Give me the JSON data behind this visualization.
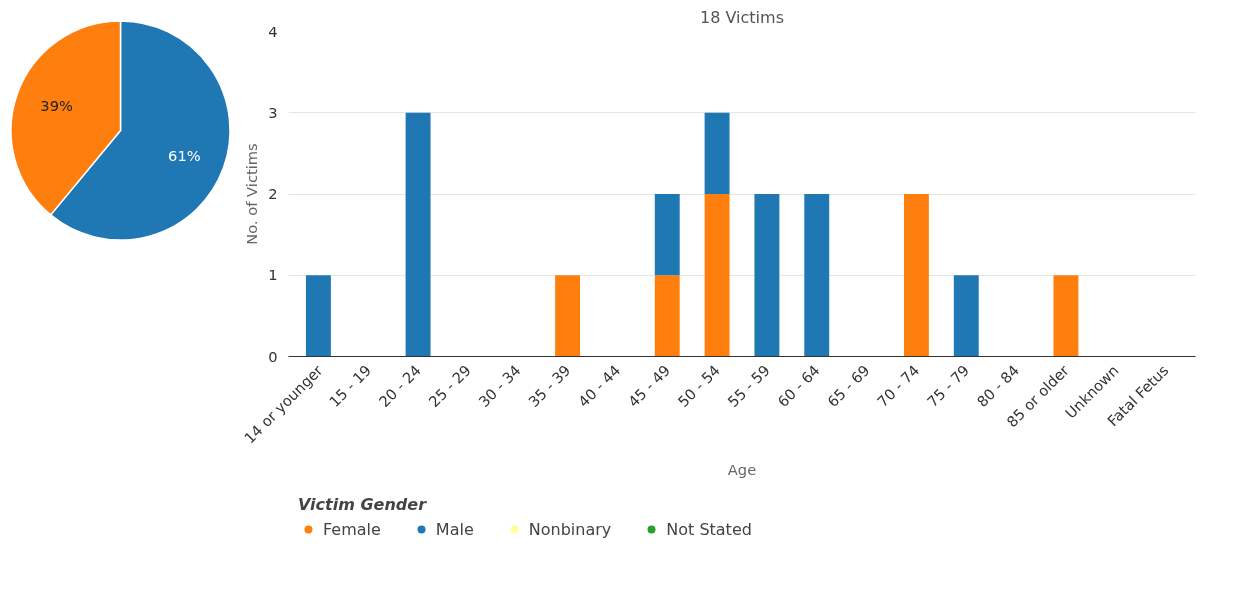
{
  "chart_data": [
    {
      "type": "pie",
      "categories": [
        null,
        null
      ],
      "values": [
        61,
        39
      ],
      "colors": [
        "#1f77b4",
        "#ff7f0e"
      ],
      "value_labels": [
        "61%",
        "39%"
      ]
    },
    {
      "type": "bar",
      "title": "18 Victims",
      "xlabel": "Age",
      "ylabel": "No. of Victims",
      "legend_title": "Victim Gender",
      "stacked": true,
      "legend": "bottom",
      "grid": "y",
      "ylim": [
        0,
        4
      ],
      "yticks": [
        0,
        1,
        2,
        3,
        4
      ],
      "categories": [
        "14 or younger",
        "15 - 19",
        "20 - 24",
        "25 - 29",
        "30 - 34",
        "35 - 39",
        "40 - 44",
        "45 - 49",
        "50 - 54",
        "55 - 59",
        "60 - 64",
        "65 - 69",
        "70 - 74",
        "75 - 79",
        "80 - 84",
        "85 or older",
        "Unknown",
        "Fatal Fetus"
      ],
      "series": [
        {
          "name": "Female",
          "color": "#ff7f0e",
          "values": [
            0,
            0,
            0,
            0,
            0,
            1,
            0,
            1,
            2,
            0,
            0,
            0,
            2,
            0,
            0,
            1,
            0,
            0
          ]
        },
        {
          "name": "Male",
          "color": "#1f77b4",
          "values": [
            1,
            0,
            3,
            0,
            0,
            0,
            0,
            1,
            1,
            2,
            2,
            0,
            0,
            1,
            0,
            0,
            0,
            0
          ]
        },
        {
          "name": "Nonbinary",
          "color": "#ffff99",
          "values": [
            0,
            0,
            0,
            0,
            0,
            0,
            0,
            0,
            0,
            0,
            0,
            0,
            0,
            0,
            0,
            0,
            0,
            0
          ]
        },
        {
          "name": "Not Stated",
          "color": "#2ca02c",
          "values": [
            0,
            0,
            0,
            0,
            0,
            0,
            0,
            0,
            0,
            0,
            0,
            0,
            0,
            0,
            0,
            0,
            0,
            0
          ]
        }
      ]
    }
  ]
}
